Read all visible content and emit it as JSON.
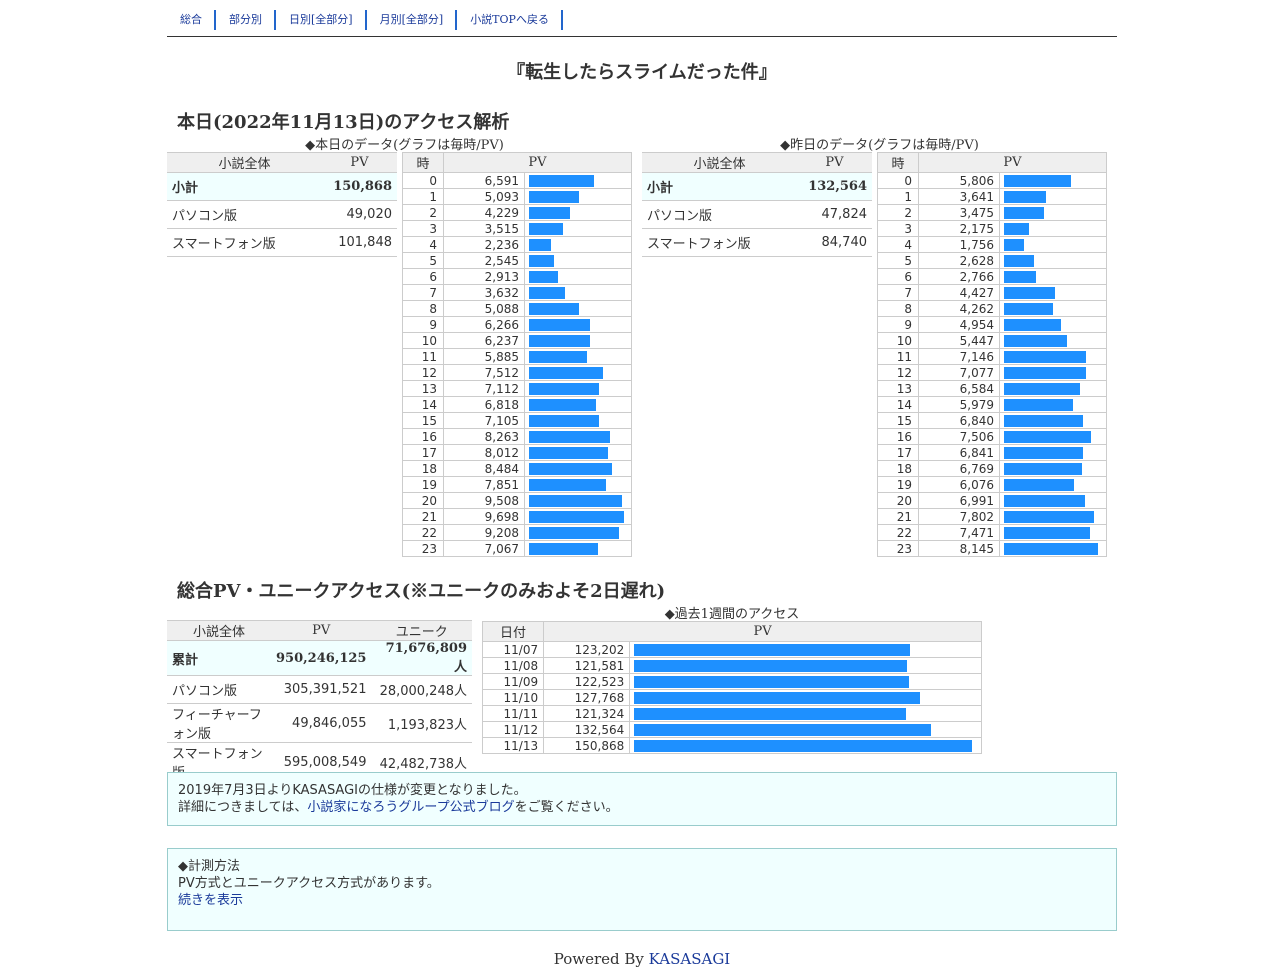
{
  "nav": [
    "総合",
    "部分別",
    "日別[全部分]",
    "月別[全部分]",
    "小説TOPへ戻る"
  ],
  "novel_title": "『転生したらスライムだった件』",
  "today": {
    "heading": "本日(2022年11月13日)のアクセス解析",
    "today_caption": "◆本日のデータ(グラフは毎時/PV)",
    "yesterday_caption": "◆昨日のデータ(グラフは毎時/PV)",
    "summary_headers": [
      "小説全体",
      "PV"
    ],
    "hour_headers": [
      "時",
      "PV"
    ],
    "today_summary": [
      {
        "label": "小計",
        "value": "150,868"
      },
      {
        "label": "パソコン版",
        "value": "49,020"
      },
      {
        "label": "スマートフォン版",
        "value": "101,848"
      }
    ],
    "yesterday_summary": [
      {
        "label": "小計",
        "value": "132,564"
      },
      {
        "label": "パソコン版",
        "value": "47,824"
      },
      {
        "label": "スマートフォン版",
        "value": "84,740"
      }
    ]
  },
  "chart_data": [
    {
      "type": "bar",
      "title": "◆本日のデータ(グラフは毎時/PV)",
      "categories": [
        "0",
        "1",
        "2",
        "3",
        "4",
        "5",
        "6",
        "7",
        "8",
        "9",
        "10",
        "11",
        "12",
        "13",
        "14",
        "15",
        "16",
        "17",
        "18",
        "19",
        "20",
        "21",
        "22",
        "23"
      ],
      "values": [
        6591,
        5093,
        4229,
        3515,
        2236,
        2545,
        2913,
        3632,
        5088,
        6266,
        6237,
        5885,
        7512,
        7112,
        6818,
        7105,
        8263,
        8012,
        8484,
        7851,
        9508,
        9698,
        9208,
        7067
      ],
      "labels": [
        "6,591",
        "5,093",
        "4,229",
        "3,515",
        "2,236",
        "2,545",
        "2,913",
        "3,632",
        "5,088",
        "6,266",
        "6,237",
        "5,885",
        "7,512",
        "7,112",
        "6,818",
        "7,105",
        "8,263",
        "8,012",
        "8,484",
        "7,851",
        "9,508",
        "9,698",
        "9,208",
        "7,067"
      ],
      "xlabel": "時",
      "ylabel": "PV",
      "max": 10000
    },
    {
      "type": "bar",
      "title": "◆昨日のデータ(グラフは毎時/PV)",
      "categories": [
        "0",
        "1",
        "2",
        "3",
        "4",
        "5",
        "6",
        "7",
        "8",
        "9",
        "10",
        "11",
        "12",
        "13",
        "14",
        "15",
        "16",
        "17",
        "18",
        "19",
        "20",
        "21",
        "22",
        "23"
      ],
      "values": [
        5806,
        3641,
        3475,
        2175,
        1756,
        2628,
        2766,
        4427,
        4262,
        4954,
        5447,
        7146,
        7077,
        6584,
        5979,
        6840,
        7506,
        6841,
        6769,
        6076,
        6991,
        7802,
        7471,
        8145
      ],
      "labels": [
        "5,806",
        "3,641",
        "3,475",
        "2,175",
        "1,756",
        "2,628",
        "2,766",
        "4,427",
        "4,262",
        "4,954",
        "5,447",
        "7,146",
        "7,077",
        "6,584",
        "5,979",
        "6,840",
        "7,506",
        "6,841",
        "6,769",
        "6,076",
        "6,991",
        "7,802",
        "7,471",
        "8,145"
      ],
      "xlabel": "時",
      "ylabel": "PV",
      "max": 8500
    },
    {
      "type": "bar",
      "title": "◆過去1週間のアクセス",
      "categories": [
        "11/07",
        "11/08",
        "11/09",
        "11/10",
        "11/11",
        "11/12",
        "11/13"
      ],
      "values": [
        123202,
        121581,
        122523,
        127768,
        121324,
        132564,
        150868
      ],
      "labels": [
        "123,202",
        "121,581",
        "122,523",
        "127,768",
        "121,324",
        "132,564",
        "150,868"
      ],
      "xlabel": "日付",
      "ylabel": "PV",
      "max": 153000
    }
  ],
  "total": {
    "heading": "総合PV・ユニークアクセス(※ユニークのみおよそ2日遅れ)",
    "headers": [
      "小説全体",
      "PV",
      "ユニーク"
    ],
    "rows": [
      {
        "label": "累計",
        "pv": "950,246,125",
        "unique": "71,676,809人"
      },
      {
        "label": "パソコン版",
        "pv": "305,391,521",
        "unique": "28,000,248人"
      },
      {
        "label": "フィーチャーフォン版",
        "pv": "49,846,055",
        "unique": "1,193,823人"
      },
      {
        "label": "スマートフォン版",
        "pv": "595,008,549",
        "unique": "42,482,738人"
      }
    ],
    "week_caption": "◆過去1週間のアクセス",
    "week_headers": [
      "日付",
      "PV"
    ]
  },
  "notice1": {
    "line1": "2019年7月3日よりKASASAGIの仕様が変更となりました。",
    "line2_pre": "詳細につきましては、",
    "link": "小説家になろうグループ公式ブログ",
    "line2_post": "をご覧ください。"
  },
  "notice2": {
    "title": "◆計測方法",
    "text": "PV方式とユニークアクセス方式があります。",
    "link": "続きを表示"
  },
  "footer": {
    "text": "Powered By ",
    "link": "KASASAGI"
  }
}
